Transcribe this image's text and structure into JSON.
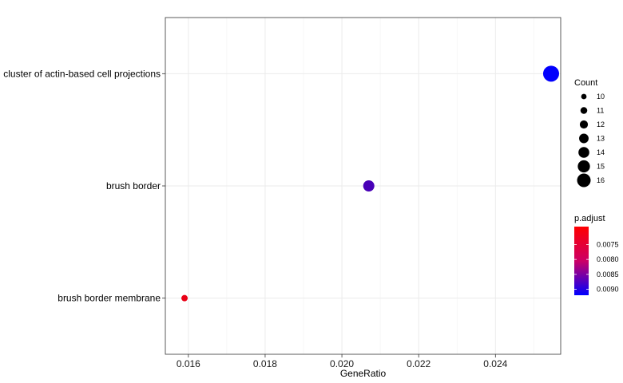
{
  "chart_data": {
    "type": "scatter",
    "xlabel": "GeneRatio",
    "ylabel": "",
    "title": "",
    "xlim": [
      0.0154,
      0.0257
    ],
    "x_ticks": [
      0.016,
      0.018,
      0.02,
      0.022,
      0.024
    ],
    "x_tick_labels": [
      "0.016",
      "0.018",
      "0.020",
      "0.022",
      "0.024"
    ],
    "categories": [
      "cluster of actin-based cell projections",
      "brush border",
      "brush border membrane"
    ],
    "points": [
      {
        "term": "cluster of actin-based cell projections",
        "gene_ratio": 0.02545,
        "count": 16,
        "p_adjust": 0.00918
      },
      {
        "term": "brush border",
        "gene_ratio": 0.0207,
        "count": 13,
        "p_adjust": 0.00855
      },
      {
        "term": "brush border membrane",
        "gene_ratio": 0.0159,
        "count": 10,
        "p_adjust": 0.0071
      }
    ],
    "grid": true,
    "size_legend": {
      "title": "Count",
      "values": [
        10,
        11,
        12,
        13,
        14,
        15,
        16
      ],
      "labels": [
        "10",
        "11",
        "12",
        "13",
        "14",
        "15",
        "16"
      ]
    },
    "color_legend": {
      "title": "p.adjust",
      "range": [
        0.0069,
        0.0092
      ],
      "ticks": [
        0.0075,
        0.008,
        0.0085,
        0.009
      ],
      "tick_labels": [
        "0.0075",
        "0.0080",
        "0.0085",
        "0.0090"
      ],
      "low_color": "#ff0000",
      "high_color": "#0000ff"
    },
    "legend_placement": "right"
  }
}
